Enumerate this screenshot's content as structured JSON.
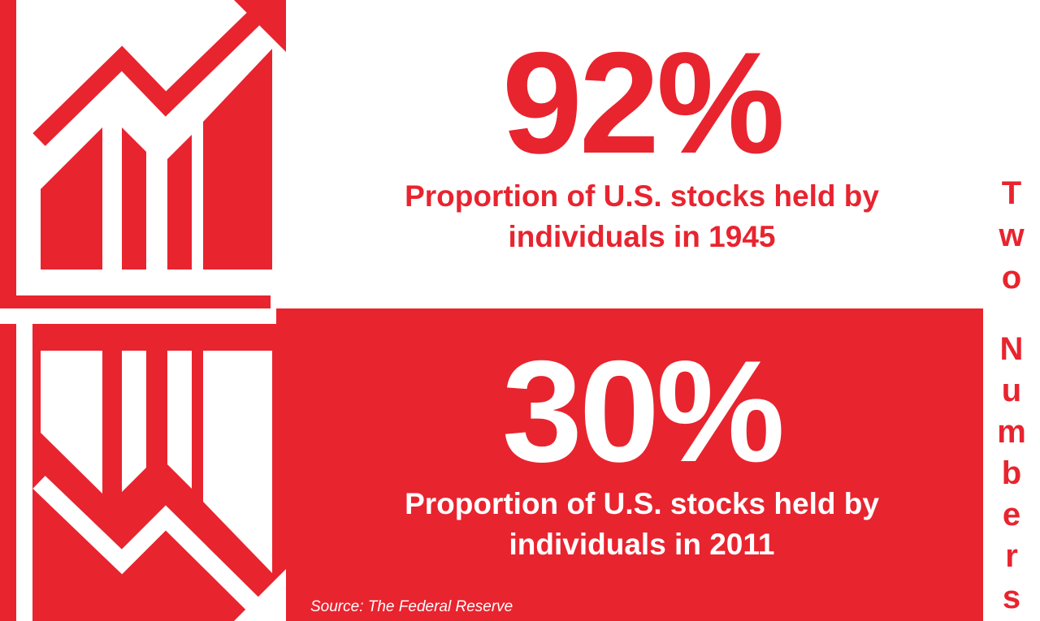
{
  "stat_top": {
    "value": "92%",
    "caption_line1": "Proportion of U.S. stocks held by",
    "caption_line2": "individuals in 1945"
  },
  "stat_bottom": {
    "value": "30%",
    "caption_line1": "Proportion of U.S. stocks held by",
    "caption_line2": "individuals in 2011"
  },
  "source": "Source: The Federal Reserve",
  "side_title": {
    "word1": [
      "T",
      "w",
      "o"
    ],
    "word2": [
      "N",
      "u",
      "m",
      "b",
      "e",
      "r",
      "s"
    ]
  },
  "icons": {
    "top": "rising-bar-chart-icon",
    "bottom": "falling-bar-chart-icon"
  },
  "colors": {
    "accent": "#e8242f",
    "background": "#ffffff"
  }
}
